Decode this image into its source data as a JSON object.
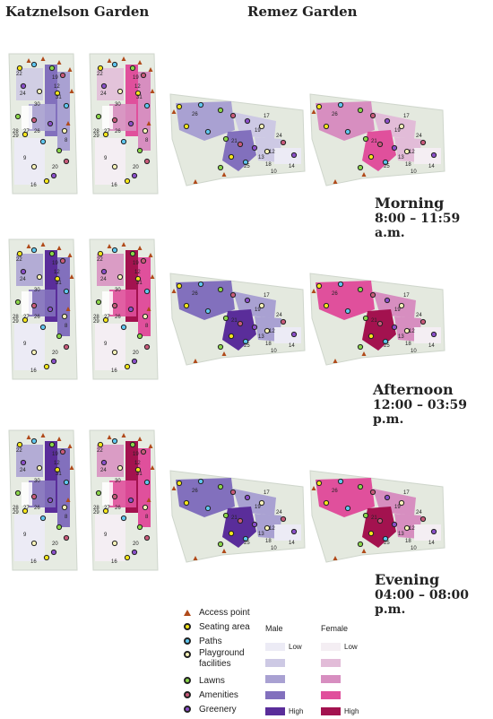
{
  "headers": {
    "left": "Katznelson Garden",
    "right": "Remez Garden"
  },
  "periods": [
    {
      "name": "Morning",
      "time": "8:00 – 11:59 a.m."
    },
    {
      "name": "Afternoon",
      "time": "12:00 – 03:59 p.m."
    },
    {
      "name": "Evening",
      "time": "04:00 – 08:00 p.m."
    }
  ],
  "legend": {
    "items": [
      {
        "label": "Access point",
        "icon": "triangle",
        "color": "#b04a1a"
      },
      {
        "label": "Seating area",
        "icon": "dot",
        "color": "#f5e61a"
      },
      {
        "label": "Paths",
        "icon": "dot",
        "color": "#5fc7f0"
      },
      {
        "label": "Playground facilities",
        "icon": "dot",
        "color": "#f7f2b8"
      },
      {
        "label": "Lawns",
        "icon": "dot",
        "color": "#8ad64a"
      },
      {
        "label": "Amenities",
        "icon": "dot",
        "color": "#c85a7a"
      },
      {
        "label": "Greenery",
        "icon": "dot",
        "color": "#8a4fc9"
      }
    ]
  },
  "scale": {
    "male": {
      "title": "Male",
      "low": "Low",
      "high": "High",
      "colors": [
        "#ecebf5",
        "#cdc9e4",
        "#a9a1d2",
        "#8270bd",
        "#5a2d9a"
      ]
    },
    "female": {
      "title": "Female",
      "low": "Low",
      "high": "High",
      "colors": [
        "#f4eef3",
        "#e2bcd8",
        "#d78ec0",
        "#e0509c",
        "#a3124f"
      ]
    }
  },
  "map_labels": {
    "katznelson": [
      "22",
      "24",
      "29",
      "28",
      "27",
      "26",
      "30",
      "20",
      "9",
      "16",
      "8",
      "19",
      "12",
      "31"
    ],
    "remez": [
      "17",
      "19",
      "21",
      "25",
      "13",
      "18",
      "12",
      "26",
      "24",
      "14",
      "10"
    ]
  }
}
